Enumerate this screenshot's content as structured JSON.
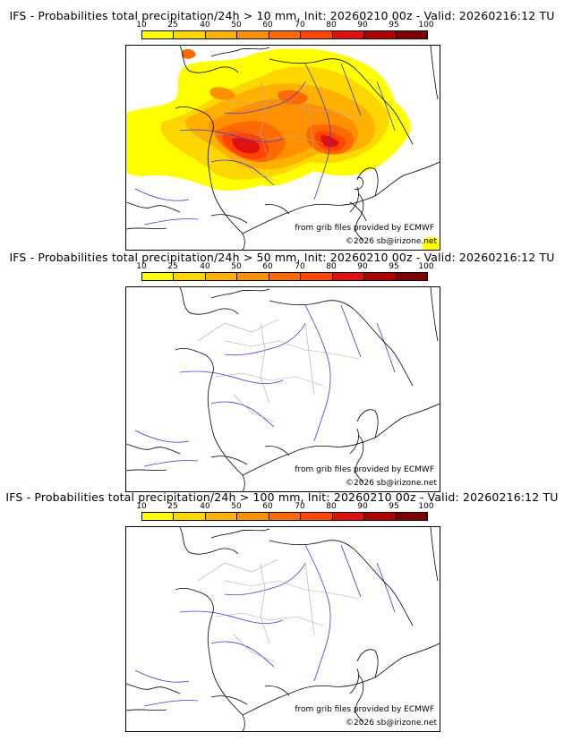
{
  "panels": [
    {
      "title": "IFS - Probabilities total precipitation/24h > 10 mm, Init: 20260210 00z - Valid: 20260216:12 TU"
    },
    {
      "title": "IFS - Probabilities total precipitation/24h > 50 mm, Init: 20260210 00z - Valid: 20260216:12 TU"
    },
    {
      "title": "IFS - Probabilities total precipitation/24h > 100 mm, Init: 20260210 00z - Valid: 20260216:12 TU"
    }
  ],
  "colorbar": {
    "ticks": [
      "10",
      "25",
      "40",
      "50",
      "60",
      "70",
      "80",
      "90",
      "95",
      "100"
    ],
    "colors": [
      "#ffff00",
      "#ffd700",
      "#ffb000",
      "#ff9000",
      "#ff6a00",
      "#ff4500",
      "#e01010",
      "#b00000",
      "#800000"
    ]
  },
  "credits": {
    "source": "from grib files provided by ECMWF",
    "copyright": "©2026 sb@irizone.net"
  },
  "colors": {
    "coast": "#000000",
    "rivers": "#3a3ad8",
    "borders": "#aaaaaa"
  }
}
